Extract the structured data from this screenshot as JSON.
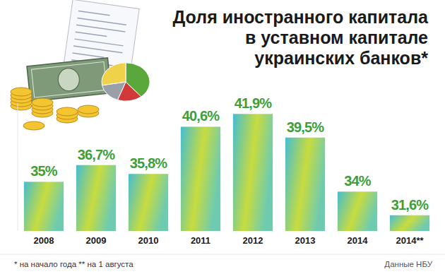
{
  "chart_data": {
    "type": "bar",
    "title": "Доля иностранного капитала\nв уставном капитале\nукраинских банков*",
    "categories": [
      "2008",
      "2009",
      "2010",
      "2011",
      "2012",
      "2013",
      "2014",
      "2014**"
    ],
    "values": [
      35,
      36.7,
      35.8,
      40.6,
      41.9,
      39.5,
      34,
      31.6
    ],
    "value_labels": [
      "35%",
      "36,7%",
      "35,8%",
      "40,6%",
      "41,9%",
      "39,5%",
      "34%",
      "31,6%"
    ],
    "color": "#c8dc3e",
    "ylim": [
      30,
      43
    ],
    "data_labels": true,
    "tick_labels": "x",
    "grid": false,
    "footnote": "* на начало года ** на 1 августа",
    "source": "Данные НБУ"
  }
}
